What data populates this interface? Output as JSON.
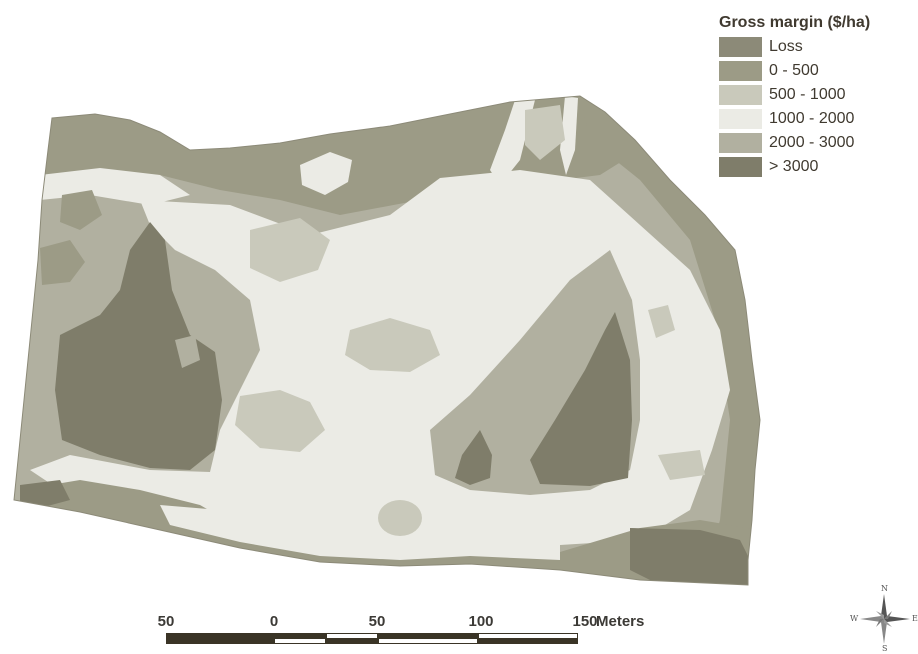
{
  "colors": {
    "loss": "#8c8a78",
    "range_0_500": "#9c9b86",
    "range_500_1000": "#c9c9bb",
    "range_1000_2000": "#ebebe5",
    "range_2000_3000": "#b1b0a0",
    "range_gt_3000": "#7f7d6a",
    "ink": "#403a30"
  },
  "legend": {
    "title": "Gross margin ($/ha)",
    "items": [
      {
        "label": "Loss",
        "color": "#8c8a78"
      },
      {
        "label": "0 - 500",
        "color": "#9c9b86"
      },
      {
        "label": "500 - 1000",
        "color": "#c9c9bb"
      },
      {
        "label": "1000 - 2000",
        "color": "#ebebe5"
      },
      {
        "label": "2000 - 3000",
        "color": "#b1b0a0"
      },
      {
        "label": "> 3000",
        "color": "#7f7d6a"
      }
    ]
  },
  "scale": {
    "labels": [
      "50",
      "0",
      "50",
      "100",
      "150"
    ],
    "unit": "Meters"
  },
  "compass": {
    "n": "N",
    "s": "S",
    "e": "E",
    "w": "W"
  }
}
